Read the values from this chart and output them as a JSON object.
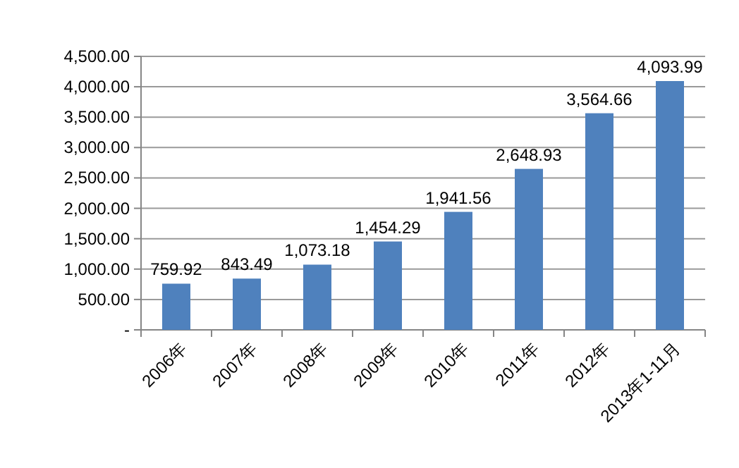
{
  "chart_data": {
    "type": "bar",
    "categories": [
      "2006年",
      "2007年",
      "2008年",
      "2009年",
      "2010年",
      "2011年",
      "2012年",
      "2013年1-11月"
    ],
    "values": [
      759.92,
      843.49,
      1073.18,
      1454.29,
      1941.56,
      2648.93,
      3564.66,
      4093.99
    ],
    "value_labels": [
      "759.92",
      "843.49",
      "1,073.18",
      "1,454.29",
      "1,941.56",
      "2,648.93",
      "3,564.66",
      "4,093.99"
    ],
    "color": "#4f81bd",
    "ylim": [
      0,
      4500
    ],
    "yticks": [
      {
        "value": 0,
        "label": "-"
      },
      {
        "value": 500,
        "label": "500.00"
      },
      {
        "value": 1000,
        "label": "1,000.00"
      },
      {
        "value": 1500,
        "label": "1,500.00"
      },
      {
        "value": 2000,
        "label": "2,000.00"
      },
      {
        "value": 2500,
        "label": "2,500.00"
      },
      {
        "value": 3000,
        "label": "3,000.00"
      },
      {
        "value": 3500,
        "label": "3,500.00"
      },
      {
        "value": 4000,
        "label": "4,000.00"
      },
      {
        "value": 4500,
        "label": "4,500.00"
      }
    ],
    "grid": "y"
  }
}
